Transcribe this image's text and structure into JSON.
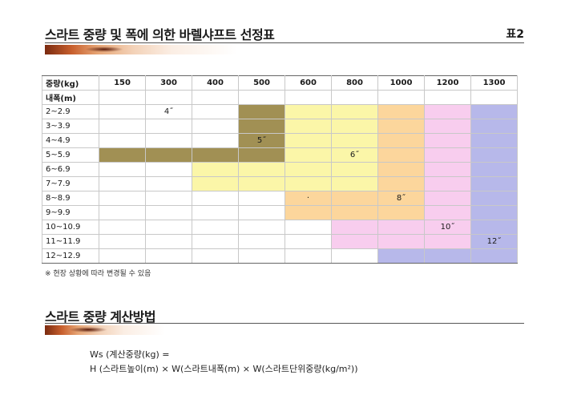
{
  "top_section": {
    "title": "스라트 중량 및 폭에 의한 바렐샤프트 선정표",
    "badge": "표2"
  },
  "table": {
    "header_label": "중량(kg)",
    "subheader_label": "내폭(m)",
    "weights": [
      "150",
      "300",
      "400",
      "500",
      "600",
      "800",
      "1000",
      "1200",
      "1300"
    ],
    "widths": [
      "2~2.9",
      "3~3.9",
      "4~4.9",
      "5~5.9",
      "6~6.9",
      "7~7.9",
      "8~8.9",
      "9~9.9",
      "10~10.9",
      "11~11.9",
      "12~12.9"
    ],
    "zone_colors": {
      "4\"": "#ffffff",
      "5\"": "#a19054",
      "6\"": "#fbf6a8",
      "8\"": "#fcd69c",
      "10\"": "#f8cdee",
      "12\"": "#b7b8ea"
    },
    "marks": {
      "m4": "4˝",
      "m5": "5˝",
      "m6": "6˝",
      "m8": "8˝",
      "m10": "10˝",
      "m12": "12˝",
      "dot": "·"
    }
  },
  "note": "※ 현장 상황에 따라 변경될 수 있음",
  "bottom_section": {
    "title": "스라트 중량 계산방법",
    "formula_line1": "Ws (계산중량(kg) =",
    "formula_line2": "H (스라트높이(m) × W(스라트내폭(m) × W(스라트단위중량(kg/m²))"
  }
}
